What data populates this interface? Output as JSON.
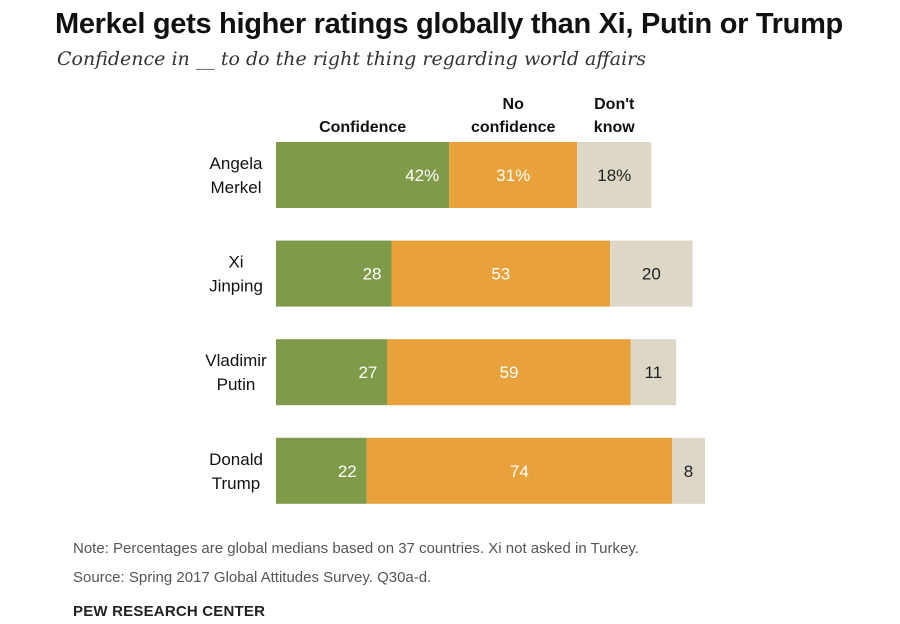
{
  "title": "Merkel gets higher ratings globally than  Xi, Putin or Trump",
  "subtitle": "Confidence in __ to do the right thing regarding world  affairs",
  "notes": {
    "note": "Note: Percentages are global medians based on 37 countries. Xi not  asked in Turkey.",
    "source": "Source: Spring 2017 Global Attitudes Survey. Q30a-d.",
    "brand": "PEW RESEARCH CENTER"
  },
  "chart_data": {
    "type": "bar",
    "orientation": "horizontal",
    "stacked": true,
    "categories": [
      [
        "Angela",
        "Merkel"
      ],
      [
        "Xi",
        "Jinping"
      ],
      [
        "Vladimir",
        "Putin"
      ],
      [
        "Donald",
        "Trump"
      ]
    ],
    "series": [
      {
        "name": "Confidence",
        "header": [
          "Confidence"
        ],
        "color": "#7f9a48",
        "values": [
          42,
          28,
          27,
          22
        ],
        "labels": [
          "42%",
          "28",
          "27",
          "22"
        ]
      },
      {
        "name": "No confidence",
        "header": [
          "No",
          "confidence"
        ],
        "color": "#e9a23b",
        "values": [
          31,
          53,
          59,
          74
        ],
        "labels": [
          "31%",
          "53",
          "59",
          "74"
        ]
      },
      {
        "name": "Don't know",
        "header": [
          "Don't",
          "know"
        ],
        "color": "#dcd7c6",
        "values": [
          18,
          20,
          11,
          8
        ],
        "labels": [
          "18%",
          "20",
          "11",
          "8"
        ]
      }
    ],
    "units": "%",
    "grid": false,
    "legend": "column headers above bars"
  }
}
